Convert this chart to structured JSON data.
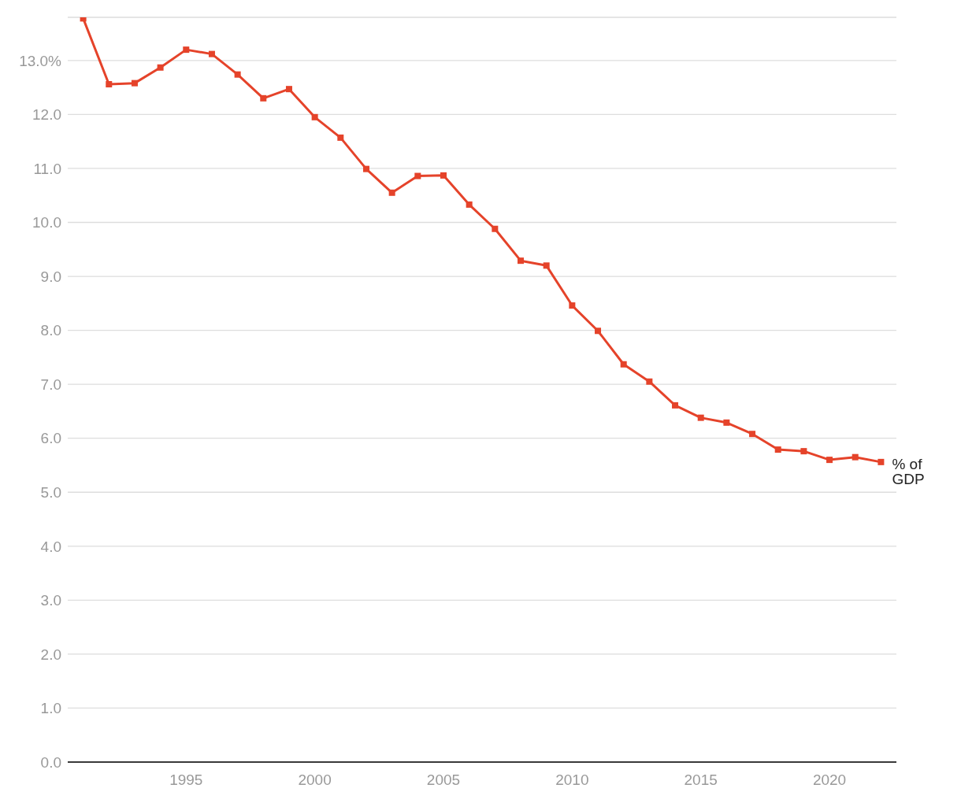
{
  "chart_data": {
    "type": "line",
    "x": [
      1991,
      1992,
      1993,
      1994,
      1995,
      1996,
      1997,
      1998,
      1999,
      2000,
      2001,
      2002,
      2003,
      2004,
      2005,
      2006,
      2007,
      2008,
      2009,
      2010,
      2011,
      2012,
      2013,
      2014,
      2015,
      2016,
      2017,
      2018,
      2019,
      2020,
      2021,
      2022
    ],
    "series": [
      {
        "name": "% of GDP",
        "color": "#e5432a",
        "values": [
          13.78,
          12.56,
          12.58,
          12.87,
          13.2,
          13.12,
          12.74,
          12.3,
          12.47,
          11.95,
          11.57,
          10.99,
          10.55,
          10.86,
          10.87,
          10.33,
          9.88,
          9.29,
          9.2,
          8.46,
          7.99,
          7.37,
          7.05,
          6.61,
          6.38,
          6.29,
          6.08,
          5.79,
          5.76,
          5.6,
          5.65,
          5.56
        ]
      }
    ],
    "xlim": [
      1990.4,
      2022.6
    ],
    "xticks": [
      1995,
      2000,
      2005,
      2010,
      2015,
      2020
    ],
    "ylim": [
      0,
      13.8
    ],
    "yticks": [
      {
        "value": 0,
        "label": "0.0"
      },
      {
        "value": 1,
        "label": "1.0"
      },
      {
        "value": 2,
        "label": "2.0"
      },
      {
        "value": 3,
        "label": "3.0"
      },
      {
        "value": 4,
        "label": "4.0"
      },
      {
        "value": 5,
        "label": "5.0"
      },
      {
        "value": 6,
        "label": "6.0"
      },
      {
        "value": 7,
        "label": "7.0"
      },
      {
        "value": 8,
        "label": "8.0"
      },
      {
        "value": 9,
        "label": "9.0"
      },
      {
        "value": 10,
        "label": "10.0"
      },
      {
        "value": 11,
        "label": "11.0"
      },
      {
        "value": 12,
        "label": "12.0"
      },
      {
        "value": 13,
        "label": "13.0%"
      }
    ],
    "grid": "y",
    "marker": "square",
    "line_style": "solid"
  }
}
